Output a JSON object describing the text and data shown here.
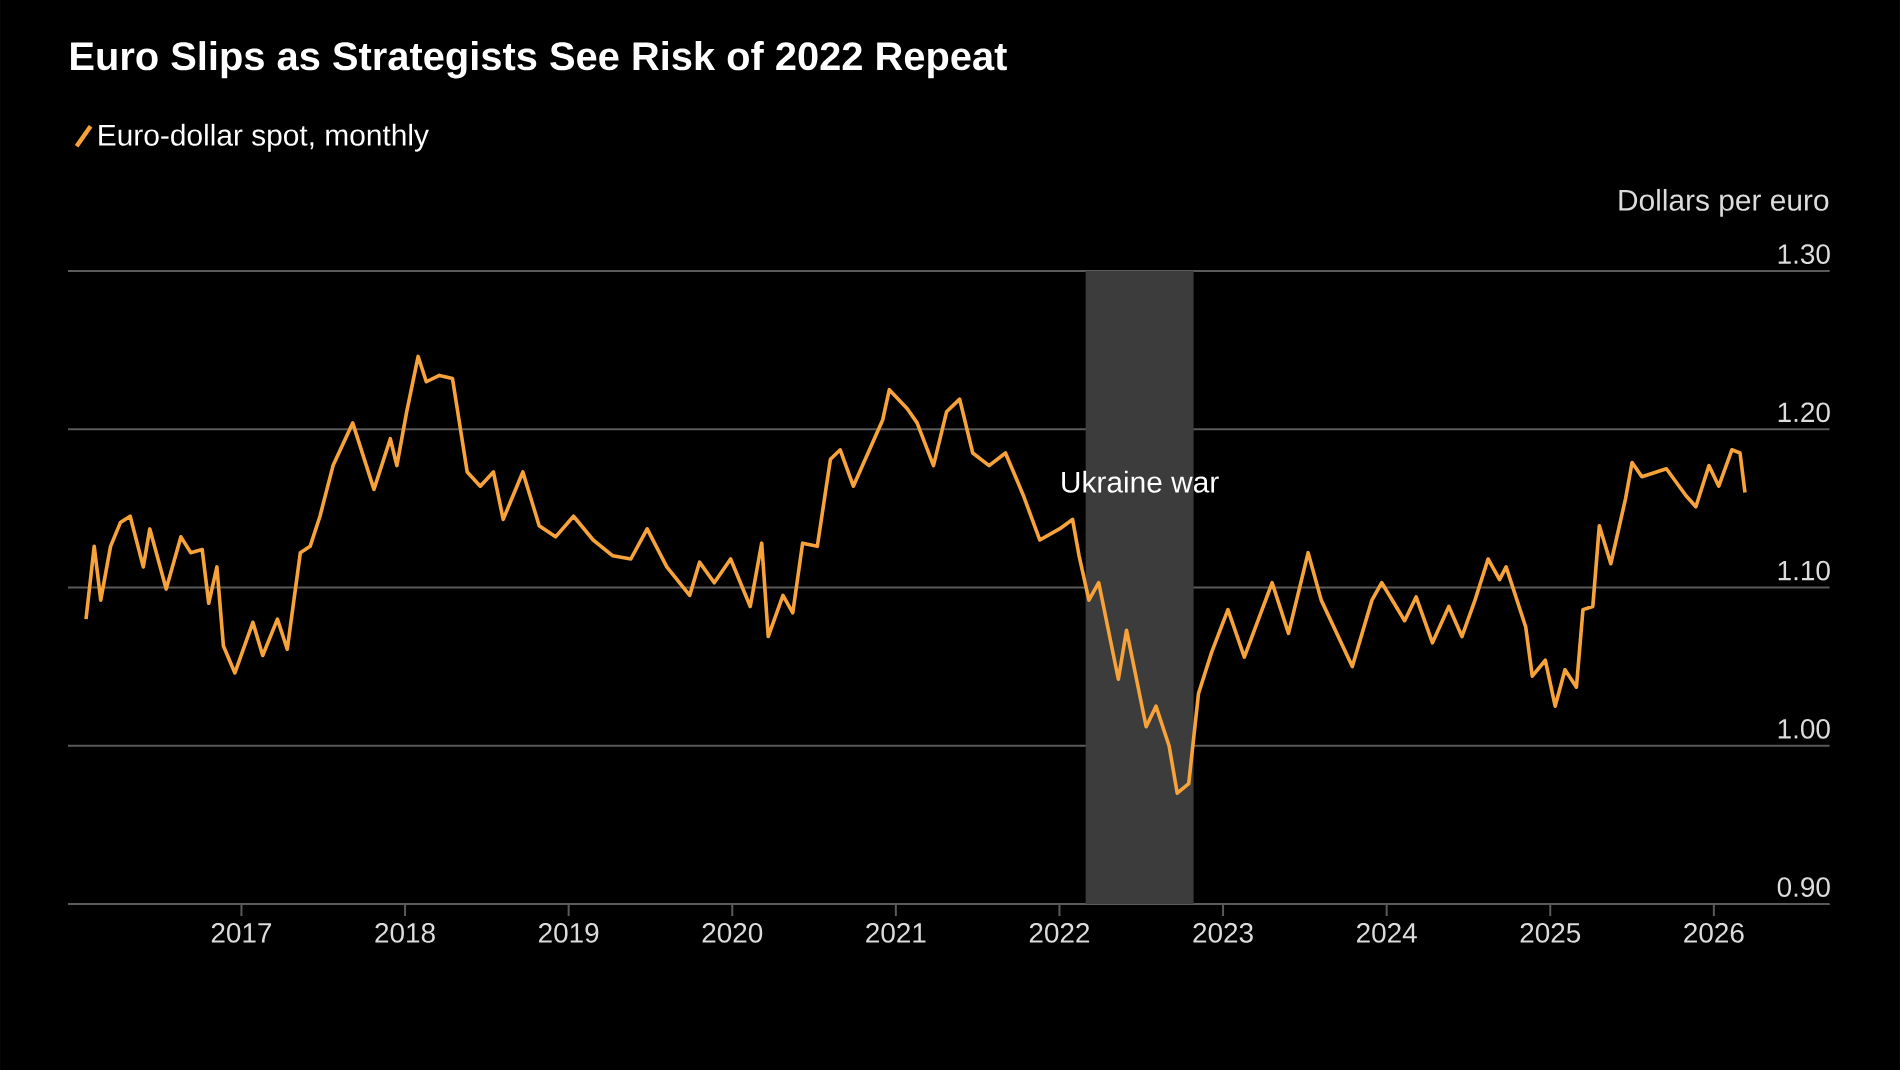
{
  "chart_data": {
    "type": "line",
    "title": "Euro Slips as Strategists See Risk of 2022 Repeat",
    "ylabel": "Dollars per euro",
    "series": [
      {
        "name": "Euro-dollar spot, monthly",
        "color": "#f7a33a",
        "x": [
          2016.05,
          2016.1,
          2016.14,
          2016.2,
          2016.26,
          2016.32,
          2016.4,
          2016.44,
          2016.54,
          2016.63,
          2016.69,
          2016.76,
          2016.8,
          2016.85,
          2016.89,
          2016.96,
          2017.07,
          2017.13,
          2017.22,
          2017.28,
          2017.36,
          2017.42,
          2017.48,
          2017.56,
          2017.68,
          2017.81,
          2017.91,
          2017.95,
          2018.01,
          2018.08,
          2018.13,
          2018.21,
          2018.29,
          2018.38,
          2018.46,
          2018.54,
          2018.6,
          2018.72,
          2018.82,
          2018.92,
          2019.03,
          2019.15,
          2019.27,
          2019.38,
          2019.48,
          2019.6,
          2019.74,
          2019.8,
          2019.89,
          2019.99,
          2020.11,
          2020.18,
          2020.22,
          2020.31,
          2020.37,
          2020.43,
          2020.52,
          2020.6,
          2020.66,
          2020.74,
          2020.83,
          2020.92,
          2020.96,
          2021.07,
          2021.13,
          2021.23,
          2021.31,
          2021.39,
          2021.47,
          2021.57,
          2021.67,
          2021.78,
          2021.88,
          2022.0,
          2022.08,
          2022.12,
          2022.18,
          2022.24,
          2022.36,
          2022.41,
          2022.53,
          2022.59,
          2022.67,
          2022.72,
          2022.79,
          2022.85,
          2022.93,
          2023.03,
          2023.13,
          2023.3,
          2023.4,
          2023.52,
          2023.6,
          2023.79,
          2023.91,
          2023.97,
          2024.11,
          2024.18,
          2024.28,
          2024.38,
          2024.46,
          2024.54,
          2024.62,
          2024.69,
          2024.73,
          2024.85,
          2024.89,
          2024.97,
          2025.03,
          2025.09,
          2025.16,
          2025.2,
          2025.26,
          2025.3,
          2025.37,
          2025.46,
          2025.5,
          2025.56,
          2025.71,
          2025.83,
          2025.89,
          2025.97,
          2026.03,
          2026.11,
          2026.16,
          2026.19
        ],
        "values": [
          1.08,
          1.126,
          1.092,
          1.126,
          1.141,
          1.145,
          1.113,
          1.137,
          1.099,
          1.132,
          1.122,
          1.124,
          1.09,
          1.113,
          1.063,
          1.046,
          1.078,
          1.057,
          1.08,
          1.061,
          1.122,
          1.126,
          1.145,
          1.177,
          1.204,
          1.162,
          1.194,
          1.177,
          1.211,
          1.246,
          1.23,
          1.234,
          1.232,
          1.173,
          1.164,
          1.173,
          1.143,
          1.173,
          1.139,
          1.132,
          1.145,
          1.13,
          1.12,
          1.118,
          1.137,
          1.113,
          1.095,
          1.116,
          1.103,
          1.118,
          1.088,
          1.128,
          1.069,
          1.095,
          1.084,
          1.128,
          1.126,
          1.181,
          1.187,
          1.164,
          1.185,
          1.206,
          1.225,
          1.213,
          1.204,
          1.177,
          1.211,
          1.219,
          1.185,
          1.177,
          1.185,
          1.158,
          1.13,
          1.137,
          1.143,
          1.12,
          1.092,
          1.103,
          1.042,
          1.073,
          1.012,
          1.025,
          1.0,
          0.97,
          0.976,
          1.033,
          1.059,
          1.086,
          1.056,
          1.103,
          1.071,
          1.122,
          1.092,
          1.05,
          1.092,
          1.103,
          1.079,
          1.094,
          1.065,
          1.088,
          1.069,
          1.092,
          1.118,
          1.105,
          1.113,
          1.075,
          1.044,
          1.054,
          1.025,
          1.048,
          1.037,
          1.086,
          1.088,
          1.139,
          1.115,
          1.156,
          1.179,
          1.17,
          1.175,
          1.158,
          1.151,
          1.177,
          1.164,
          1.187,
          1.185,
          1.16
        ]
      }
    ],
    "xlim": [
      2015.94,
      2026.71
    ],
    "xticks": [
      2017,
      2018,
      2019,
      2020,
      2021,
      2022,
      2023,
      2024,
      2025,
      2026
    ],
    "ylim": [
      0.9,
      1.3
    ],
    "yticks": [
      {
        "value": 0.9,
        "label": "0.90"
      },
      {
        "value": 1.0,
        "label": "1.00"
      },
      {
        "value": 1.1,
        "label": "1.10"
      },
      {
        "value": 1.2,
        "label": "1.20"
      },
      {
        "value": 1.3,
        "label": "1.30"
      }
    ],
    "bands": [
      {
        "axis": "x",
        "from": 2022.16,
        "to": 2022.82,
        "label": "Ukraine war",
        "color": "#3c3c3c"
      }
    ],
    "grid": "y",
    "legend": "top left"
  }
}
